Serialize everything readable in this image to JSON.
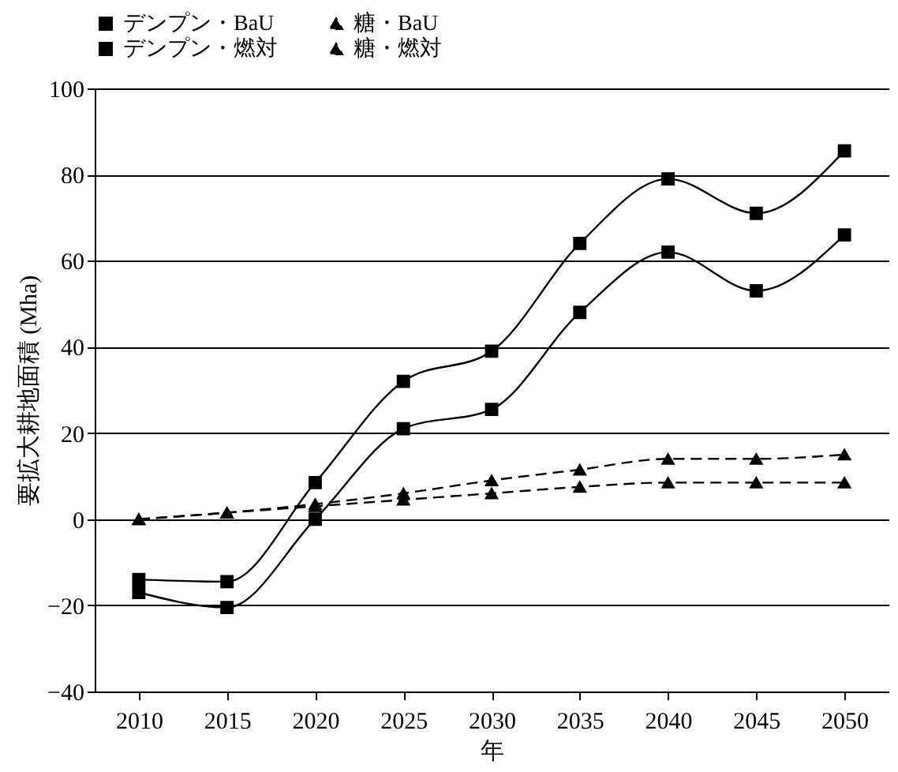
{
  "chart_data": {
    "type": "line",
    "xlabel": "年",
    "ylabel": "要拡大耕地面積 (Mha)",
    "categories": [
      "2010",
      "2015",
      "2020",
      "2025",
      "2030",
      "2035",
      "2040",
      "2045",
      "2050"
    ],
    "ylim": [
      -40,
      100
    ],
    "yticks": [
      -40,
      -20,
      0,
      20,
      40,
      60,
      80,
      100
    ],
    "grid": "y",
    "legend": "top",
    "series": [
      {
        "name": "デンプン・BaU",
        "color": "#000000",
        "marker": "square",
        "line_style": "solid",
        "values": [
          -14,
          -14.5,
          8.5,
          32,
          39,
          64,
          79,
          71,
          85.5
        ]
      },
      {
        "name": "糖・BaU",
        "color": "#000000",
        "marker": "triangle",
        "line_style": "dashed",
        "values": [
          0,
          1.5,
          3.5,
          6,
          9,
          11.5,
          14,
          14,
          15
        ]
      },
      {
        "name": "デンプン・燃対",
        "color": "#000000",
        "marker": "square",
        "line_style": "solid",
        "values": [
          -17,
          -20.5,
          0,
          21,
          25.5,
          48,
          62,
          53,
          66
        ]
      },
      {
        "name": "糖・燃対",
        "color": "#000000",
        "marker": "triangle",
        "line_style": "dashed",
        "values": [
          0,
          1.5,
          3,
          4.5,
          6,
          7.5,
          8.5,
          8.5,
          8.5
        ]
      }
    ]
  }
}
